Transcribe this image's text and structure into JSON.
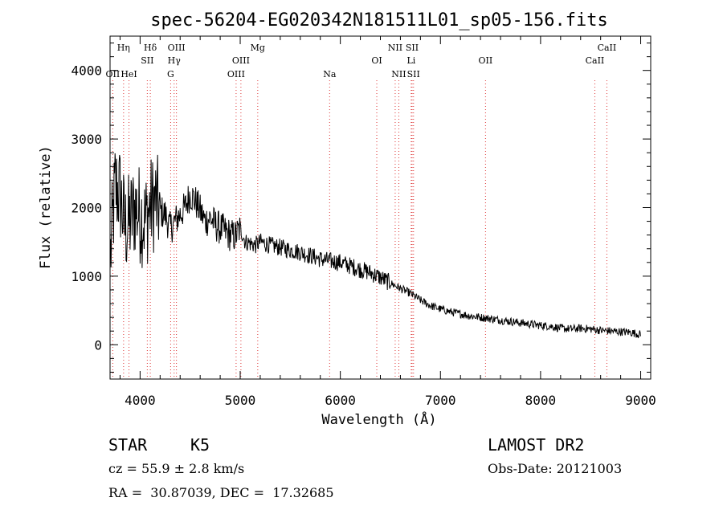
{
  "chart_data": {
    "type": "line",
    "title": "spec-56204-EG020342N181511L01_sp05-156.fits",
    "xlabel": "Wavelength (Å)",
    "ylabel": "Flux (relative)",
    "xlim": [
      3700,
      9100
    ],
    "ylim": [
      -500,
      4500
    ],
    "xticks": [
      "4000",
      "5000",
      "6000",
      "7000",
      "8000",
      "9000"
    ],
    "yticks": [
      "0",
      "1000",
      "2000",
      "3000",
      "4000"
    ],
    "grid": false,
    "series": [
      {
        "x": [
          3700,
          3750,
          3800,
          3850,
          3900,
          3950,
          4000,
          4050,
          4100,
          4150,
          4200,
          4250,
          4300,
          4350,
          4400,
          4450,
          4500,
          4550,
          4600,
          4650,
          4700,
          4750,
          4800,
          4850,
          4900,
          4950,
          5000,
          5050,
          5100,
          5150,
          5200,
          5300,
          5400,
          5500,
          5600,
          5700,
          5800,
          5900,
          6000,
          6100,
          6200,
          6300,
          6400,
          6500,
          6600,
          6700,
          6800,
          6900,
          7000,
          7100,
          7200,
          7300,
          7400,
          7500,
          7600,
          7700,
          7800,
          7900,
          8000,
          8100,
          8200,
          8300,
          8400,
          8500,
          8600,
          8700,
          8800,
          8900,
          9000
        ],
        "values": [
          1200,
          2300,
          2200,
          1700,
          1800,
          2000,
          1900,
          1800,
          2000,
          2100,
          1950,
          1900,
          1700,
          1800,
          1900,
          2000,
          2200,
          2100,
          1950,
          1800,
          1850,
          1750,
          1700,
          1650,
          1600,
          1580,
          1700,
          1500,
          1480,
          1450,
          1500,
          1450,
          1420,
          1380,
          1350,
          1300,
          1250,
          1220,
          1200,
          1150,
          1100,
          1050,
          980,
          900,
          820,
          750,
          650,
          570,
          520,
          480,
          450,
          420,
          400,
          380,
          360,
          340,
          320,
          300,
          280,
          270,
          240,
          230,
          240,
          230,
          210,
          200,
          190,
          180,
          150
        ]
      }
    ],
    "lines": [
      {
        "name": "OII",
        "x": 3727,
        "row": 3
      },
      {
        "name": "Hη",
        "x": 3835,
        "row": 1
      },
      {
        "name": "HeI",
        "x": 3889,
        "row": 3
      },
      {
        "name": "Hδ",
        "x": 4102,
        "row": 1
      },
      {
        "name": "SII",
        "x": 4072,
        "row": 2
      },
      {
        "name": "OIII",
        "x": 4363,
        "row": 1
      },
      {
        "name": "Hγ",
        "x": 4340,
        "row": 2
      },
      {
        "name": "G",
        "x": 4305,
        "row": 3
      },
      {
        "name": "Mg",
        "x": 5175,
        "row": 1
      },
      {
        "name": "OIII",
        "x": 5007,
        "row": 2
      },
      {
        "name": "OIII",
        "x": 4959,
        "row": 3
      },
      {
        "name": "Na",
        "x": 5893,
        "row": 3
      },
      {
        "name": "OI",
        "x": 6364,
        "row": 2
      },
      {
        "name": "NII",
        "x": 6548,
        "row": 1
      },
      {
        "name": "NII",
        "x": 6584,
        "row": 3
      },
      {
        "name": "SII",
        "x": 6717,
        "row": 1
      },
      {
        "name": "Li",
        "x": 6708,
        "row": 2
      },
      {
        "name": "SII",
        "x": 6731,
        "row": 3
      },
      {
        "name": "OII",
        "x": 7450,
        "row": 2
      },
      {
        "name": "CaII",
        "x": 8662,
        "row": 1
      },
      {
        "name": "CaII",
        "x": 8542,
        "row": 2
      }
    ]
  },
  "info": {
    "object_class": "STAR",
    "subclass": "K5",
    "survey": "LAMOST DR2",
    "redshift": "cz = 55.9 ± 2.8 km/s",
    "obs_date": "Obs-Date: 20121003",
    "coords": "RA =  30.87039, DEC =  17.32685"
  }
}
